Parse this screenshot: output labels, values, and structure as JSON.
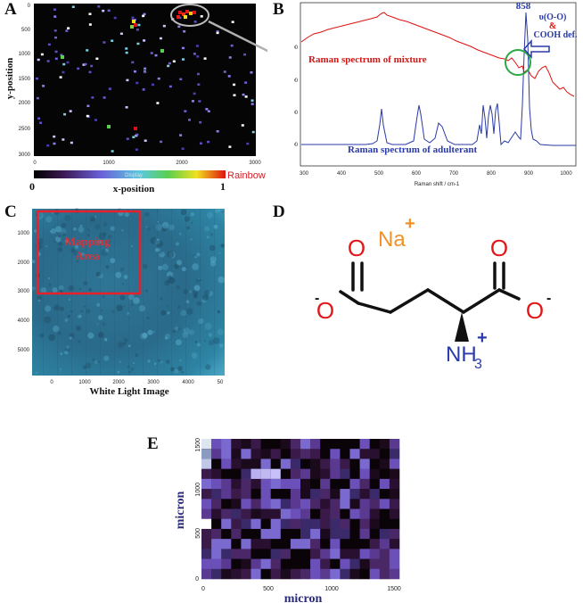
{
  "panels": {
    "a": {
      "label": "A",
      "y_label": "y-position",
      "x_label": "x-position",
      "x_ticks": [
        "0",
        "1000",
        "2000",
        "3000"
      ],
      "y_ticks": [
        "0",
        "500",
        "1000",
        "1500",
        "2000",
        "2500",
        "3000"
      ],
      "colorbar_min": "0",
      "colorbar_max": "1",
      "colorbar_title": "Display",
      "colorbar_scheme": "Rainbow"
    },
    "b": {
      "label": "B",
      "peak_label": "858",
      "annot_line1": "υ(O-O)",
      "annot_line2": "&",
      "annot_line3": "COOH def.",
      "mixture_label": "Raman spectrum of mixture",
      "adulterant_label": "Raman spectrum of adulterant",
      "x_axis_label": "Raman shift / cm-1",
      "x_ticks": [
        "300",
        "400",
        "500",
        "600",
        "700",
        "800",
        "900",
        "1000"
      ],
      "y_ticks": [
        "9000",
        "8000",
        "7000",
        "6000"
      ],
      "mixture_color": "#e01010",
      "adulterant_color": "#2a3aa8"
    },
    "c": {
      "label": "C",
      "mapping_label_1": "Mapping",
      "mapping_label_2": "Area",
      "x_label": "White Light Image",
      "x_ticks": [
        "0",
        "1000",
        "2000",
        "3000",
        "4000",
        "50"
      ],
      "y_ticks": [
        "1000",
        "2000",
        "3000",
        "4000",
        "5000"
      ],
      "box_color": "#e8202a"
    },
    "d": {
      "label": "D",
      "sodium": "Na",
      "sodium_charge": "+",
      "oxygen": "O",
      "minus": "-",
      "nh3": "NH",
      "nh3_sub": "3",
      "nh3_charge": "+"
    },
    "e": {
      "label": "E",
      "x_label": "micron",
      "y_label": "micron",
      "x_ticks": [
        "0",
        "500",
        "1000",
        "1500"
      ],
      "y_ticks": [
        "0",
        "500",
        "1000",
        "1500"
      ]
    }
  }
}
